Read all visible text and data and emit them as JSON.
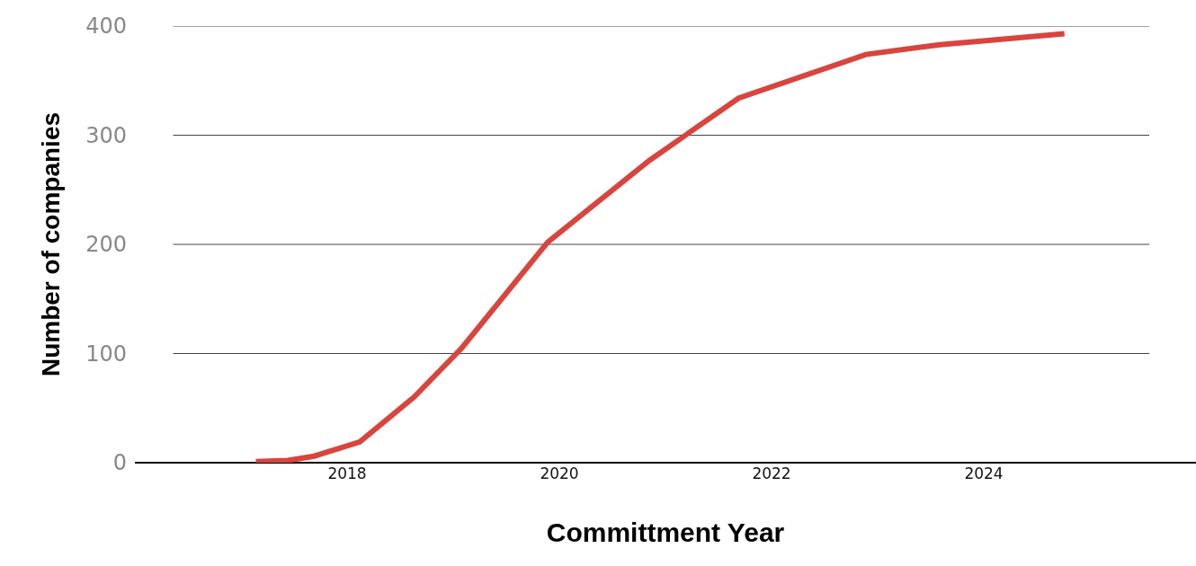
{
  "chart_data": {
    "type": "line",
    "xlabel": "Committment Year",
    "ylabel": "Number of companies",
    "x": [
      2017.14,
      2017.44,
      2017.69,
      2018.12,
      2018.63,
      2019.08,
      2019.89,
      2020.85,
      2021.69,
      2022.89,
      2023.59,
      2024.76
    ],
    "series": [
      {
        "color": "#d9443c",
        "values": [
          1,
          2,
          6,
          19,
          60,
          105,
          202,
          277,
          334,
          374,
          383,
          393
        ]
      }
    ],
    "xlim": [
      2016,
      2026
    ],
    "xticks": [
      2018,
      2020,
      2022,
      2024
    ],
    "ylim": [
      0,
      400
    ],
    "yticks": [
      0,
      100,
      200,
      300,
      400
    ],
    "grid": "y",
    "marker": "none",
    "line_style": "solid"
  }
}
